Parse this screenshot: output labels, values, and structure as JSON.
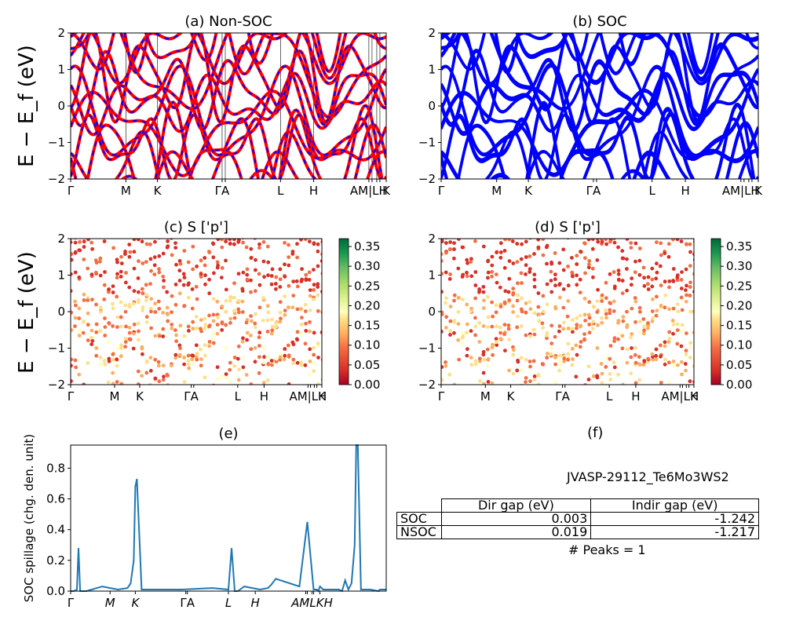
{
  "chart_data": [
    {
      "type": "line",
      "title": "(a) Non-SOC",
      "ylabel": "E − E_f (eV)",
      "ylim": [
        -2,
        2
      ],
      "y_ticks": [
        "2",
        "1",
        "0",
        "−1",
        "−2"
      ],
      "x_ticks": [
        "Γ",
        "M",
        "K",
        "Γ",
        "A",
        "L",
        "H",
        "A",
        "M",
        "L",
        "H",
        "K"
      ],
      "x_tick_display": [
        "Γ",
        "M",
        "K",
        "ΓA",
        "L",
        "H",
        "AM|LH",
        "K"
      ],
      "series": [
        {
          "name": "",
          "color": "#ff0000",
          "style": "solid"
        },
        {
          "name": "",
          "color": "#0000ff",
          "style": "dashed"
        }
      ]
    },
    {
      "type": "line",
      "title": "(b) SOC",
      "ylim": [
        -2,
        2
      ],
      "y_ticks": [
        "2",
        "1",
        "0",
        "−1",
        "−2"
      ],
      "x_tick_display": [
        "Γ",
        "M",
        "K",
        "ΓA",
        "L",
        "H",
        "AM|LH",
        "K"
      ],
      "series": [
        {
          "name": "",
          "color": "#0000ff",
          "style": "solid"
        }
      ]
    },
    {
      "type": "scatter",
      "title": "(c)  S ['p']",
      "ylabel": "E − E_f (eV)",
      "ylim": [
        -2,
        2
      ],
      "y_ticks": [
        "2",
        "1",
        "0",
        "−1",
        "−2"
      ],
      "x_tick_display": [
        "Γ",
        "M",
        "K",
        "ΓA",
        "L",
        "H",
        "AM|LH",
        "K"
      ],
      "colorbar": {
        "cmap": "RdYlGn",
        "range": [
          0,
          0.37
        ],
        "ticks": [
          "0.35",
          "0.30",
          "0.25",
          "0.20",
          "0.15",
          "0.10",
          "0.05",
          "0.00"
        ]
      }
    },
    {
      "type": "scatter",
      "title": "(d) S ['p']",
      "ylim": [
        -2,
        2
      ],
      "y_ticks": [
        "2",
        "1",
        "0",
        "−1",
        "−2"
      ],
      "x_tick_display": [
        "Γ",
        "M",
        "K",
        "ΓA",
        "L",
        "H",
        "AM|LH",
        "K"
      ],
      "colorbar": {
        "cmap": "RdYlGn",
        "range": [
          0,
          0.37
        ],
        "ticks": [
          "0.35",
          "0.30",
          "0.25",
          "0.20",
          "0.15",
          "0.10",
          "0.05",
          "0.00"
        ]
      }
    },
    {
      "type": "line",
      "title": "(e)",
      "ylabel": "SOC spillage (chg. den. unit)",
      "ylim": [
        0,
        0.95
      ],
      "y_ticks": [
        "0.8",
        "0.6",
        "0.4",
        "0.2",
        "0.0"
      ],
      "x_tick_display": [
        "Γ",
        "M",
        "K",
        "ΓA",
        "L",
        "H",
        "AMLKH"
      ],
      "x": [
        0,
        0.2,
        0.4,
        0.5,
        0.6,
        1.0,
        2.0,
        3.0,
        3.6,
        3.8,
        4.0,
        4.1,
        4.2,
        4.5,
        5.0,
        7.0,
        9.0,
        10.0,
        10.2,
        10.4,
        10.5,
        10.6,
        11.0,
        12.0,
        12.5,
        12.7,
        13.0,
        14.5,
        15.0,
        15.4,
        15.6,
        15.7,
        15.8,
        16.0,
        17.0,
        17.2,
        17.4,
        17.6,
        17.8,
        18.0,
        18.1,
        18.2,
        18.4,
        18.6,
        19.0,
        19.5,
        19.6,
        19.8,
        20.0
      ],
      "values": [
        0.0,
        0.0,
        0.01,
        0.28,
        0.0,
        0.0,
        0.03,
        0.01,
        0.02,
        0.05,
        0.2,
        0.68,
        0.73,
        0.01,
        0.01,
        0.01,
        0.02,
        0.01,
        0.28,
        0.0,
        0.0,
        0.0,
        0.03,
        0.01,
        0.02,
        0.04,
        0.08,
        0.03,
        0.45,
        0.01,
        0.01,
        0.0,
        0.03,
        0.01,
        0.01,
        0.0,
        0.07,
        0.01,
        0.05,
        0.3,
        0.95,
        0.95,
        0.01,
        0.01,
        0.01,
        0.0,
        0.01,
        0.01,
        0.01
      ]
    }
  ],
  "panel_f": {
    "title": "(f)",
    "material": "JVASP-29112_Te6Mo3WS2",
    "table": {
      "headers": [
        "Dir gap (eV)",
        "Indir gap (eV)"
      ],
      "rows": [
        {
          "label": "SOC",
          "dir": "0.003",
          "indir": "-1.242"
        },
        {
          "label": "NSOC",
          "dir": "0.019",
          "indir": "-1.217"
        }
      ]
    },
    "peaks": "# Peaks = 1"
  }
}
